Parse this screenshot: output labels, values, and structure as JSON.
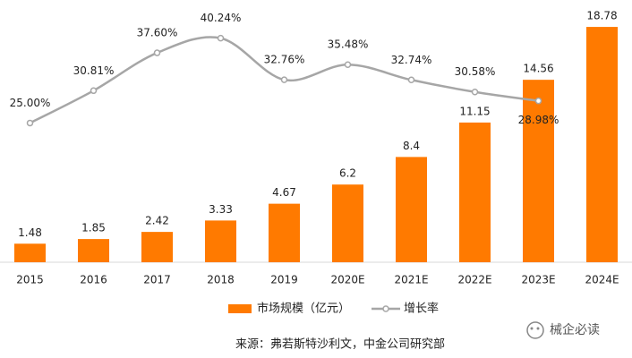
{
  "chart_data": {
    "type": "bar_line",
    "categories": [
      "2015",
      "2016",
      "2017",
      "2018",
      "2019",
      "2020E",
      "2021E",
      "2022E",
      "2023E",
      "2024E"
    ],
    "series": [
      {
        "name": "市场规模（亿元）",
        "type": "bar",
        "color": "#ff7a00",
        "values": [
          1.48,
          1.85,
          2.42,
          3.33,
          4.67,
          6.2,
          8.4,
          11.15,
          14.56,
          18.78
        ]
      },
      {
        "name": "增长率",
        "type": "line",
        "axis": "y2",
        "color": "#a6a6a6",
        "smooth": true,
        "values": [
          25.0,
          30.81,
          37.6,
          40.24,
          32.76,
          35.48,
          32.74,
          30.58,
          28.98,
          null
        ],
        "value_labels": [
          "25.00%",
          "30.81%",
          "37.60%",
          "40.24%",
          "32.76%",
          "35.48%",
          "32.74%",
          "30.58%",
          "28.98%",
          null
        ]
      }
    ],
    "ylim": [
      0,
      20
    ],
    "y2lim": [
      0,
      45
    ],
    "legend": "bottom",
    "source": "来源：弗若斯特沙利文，中金公司研究部",
    "watermark": "械企必读"
  }
}
